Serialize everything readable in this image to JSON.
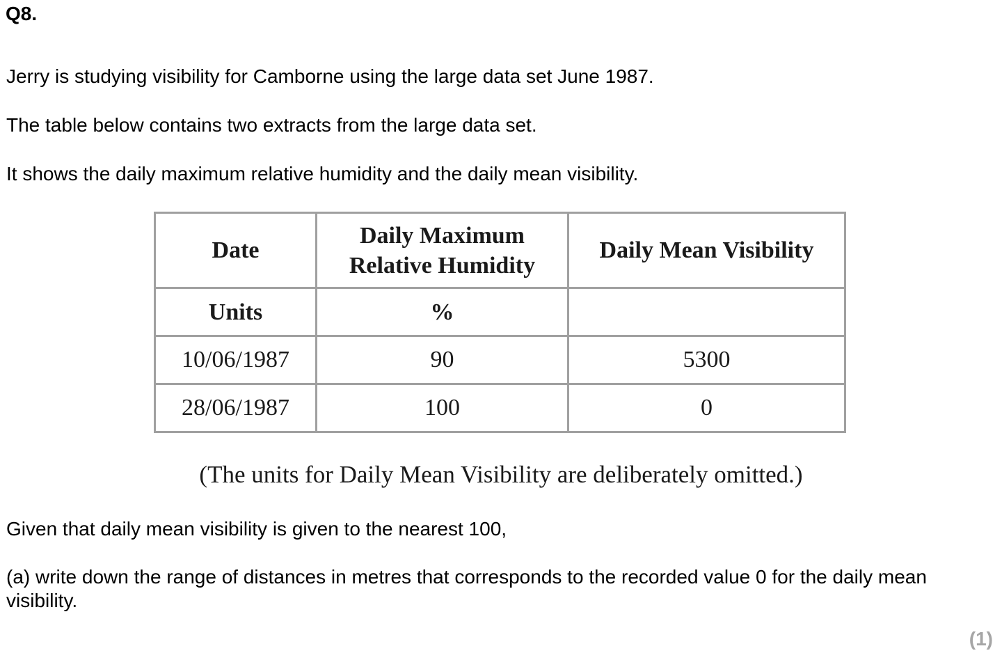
{
  "question": {
    "number": "Q8.",
    "intro": [
      "Jerry is studying visibility for Camborne using the large data set June 1987.",
      "The table below contains two extracts from the large data set.",
      "It shows the daily maximum relative humidity and the daily mean visibility."
    ],
    "table": {
      "headers": {
        "date": "Date",
        "humidity_line1": "Daily Maximum",
        "humidity_line2": "Relative Humidity",
        "visibility": "Daily Mean Visibility"
      },
      "units": {
        "label": "Units",
        "humidity": "%",
        "visibility": ""
      },
      "rows": [
        {
          "date": "10/06/1987",
          "humidity": "90",
          "visibility": "5300"
        },
        {
          "date": "28/06/1987",
          "humidity": "100",
          "visibility": "0"
        }
      ]
    },
    "note": "(The units for Daily Mean Visibility are deliberately omitted.)",
    "given": "Given that daily mean visibility is given to the nearest 100,",
    "part_a": "(a)  write down the range of distances in metres that corresponds to the recorded value 0 for the daily mean visibility.",
    "marks": "(1)"
  }
}
